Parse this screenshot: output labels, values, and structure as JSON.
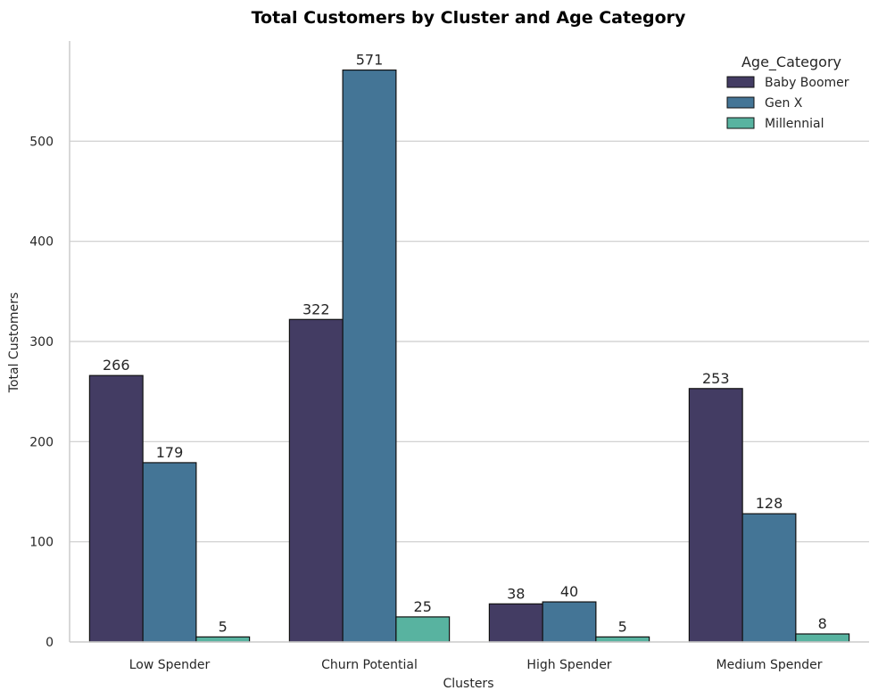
{
  "chart_data": {
    "type": "bar",
    "title": "Total Customers by Cluster and Age Category",
    "xlabel": "Clusters",
    "ylabel": "Total Customers",
    "categories": [
      "Low Spender",
      "Churn Potential",
      "High Spender",
      "Medium Spender"
    ],
    "series": [
      {
        "name": "Baby Boomer",
        "values": [
          266,
          322,
          38,
          253
        ],
        "color": "#433c63"
      },
      {
        "name": "Gen X",
        "values": [
          179,
          571,
          40,
          128
        ],
        "color": "#447596"
      },
      {
        "name": "Millennial",
        "values": [
          5,
          25,
          5,
          8
        ],
        "color": "#58b3a0"
      }
    ],
    "ylim": [
      0,
      600
    ],
    "yticks": [
      0,
      100,
      200,
      300,
      400,
      500
    ],
    "grid": "horizontal",
    "legend": {
      "title": "Age_Category",
      "placement": "top-right"
    }
  }
}
